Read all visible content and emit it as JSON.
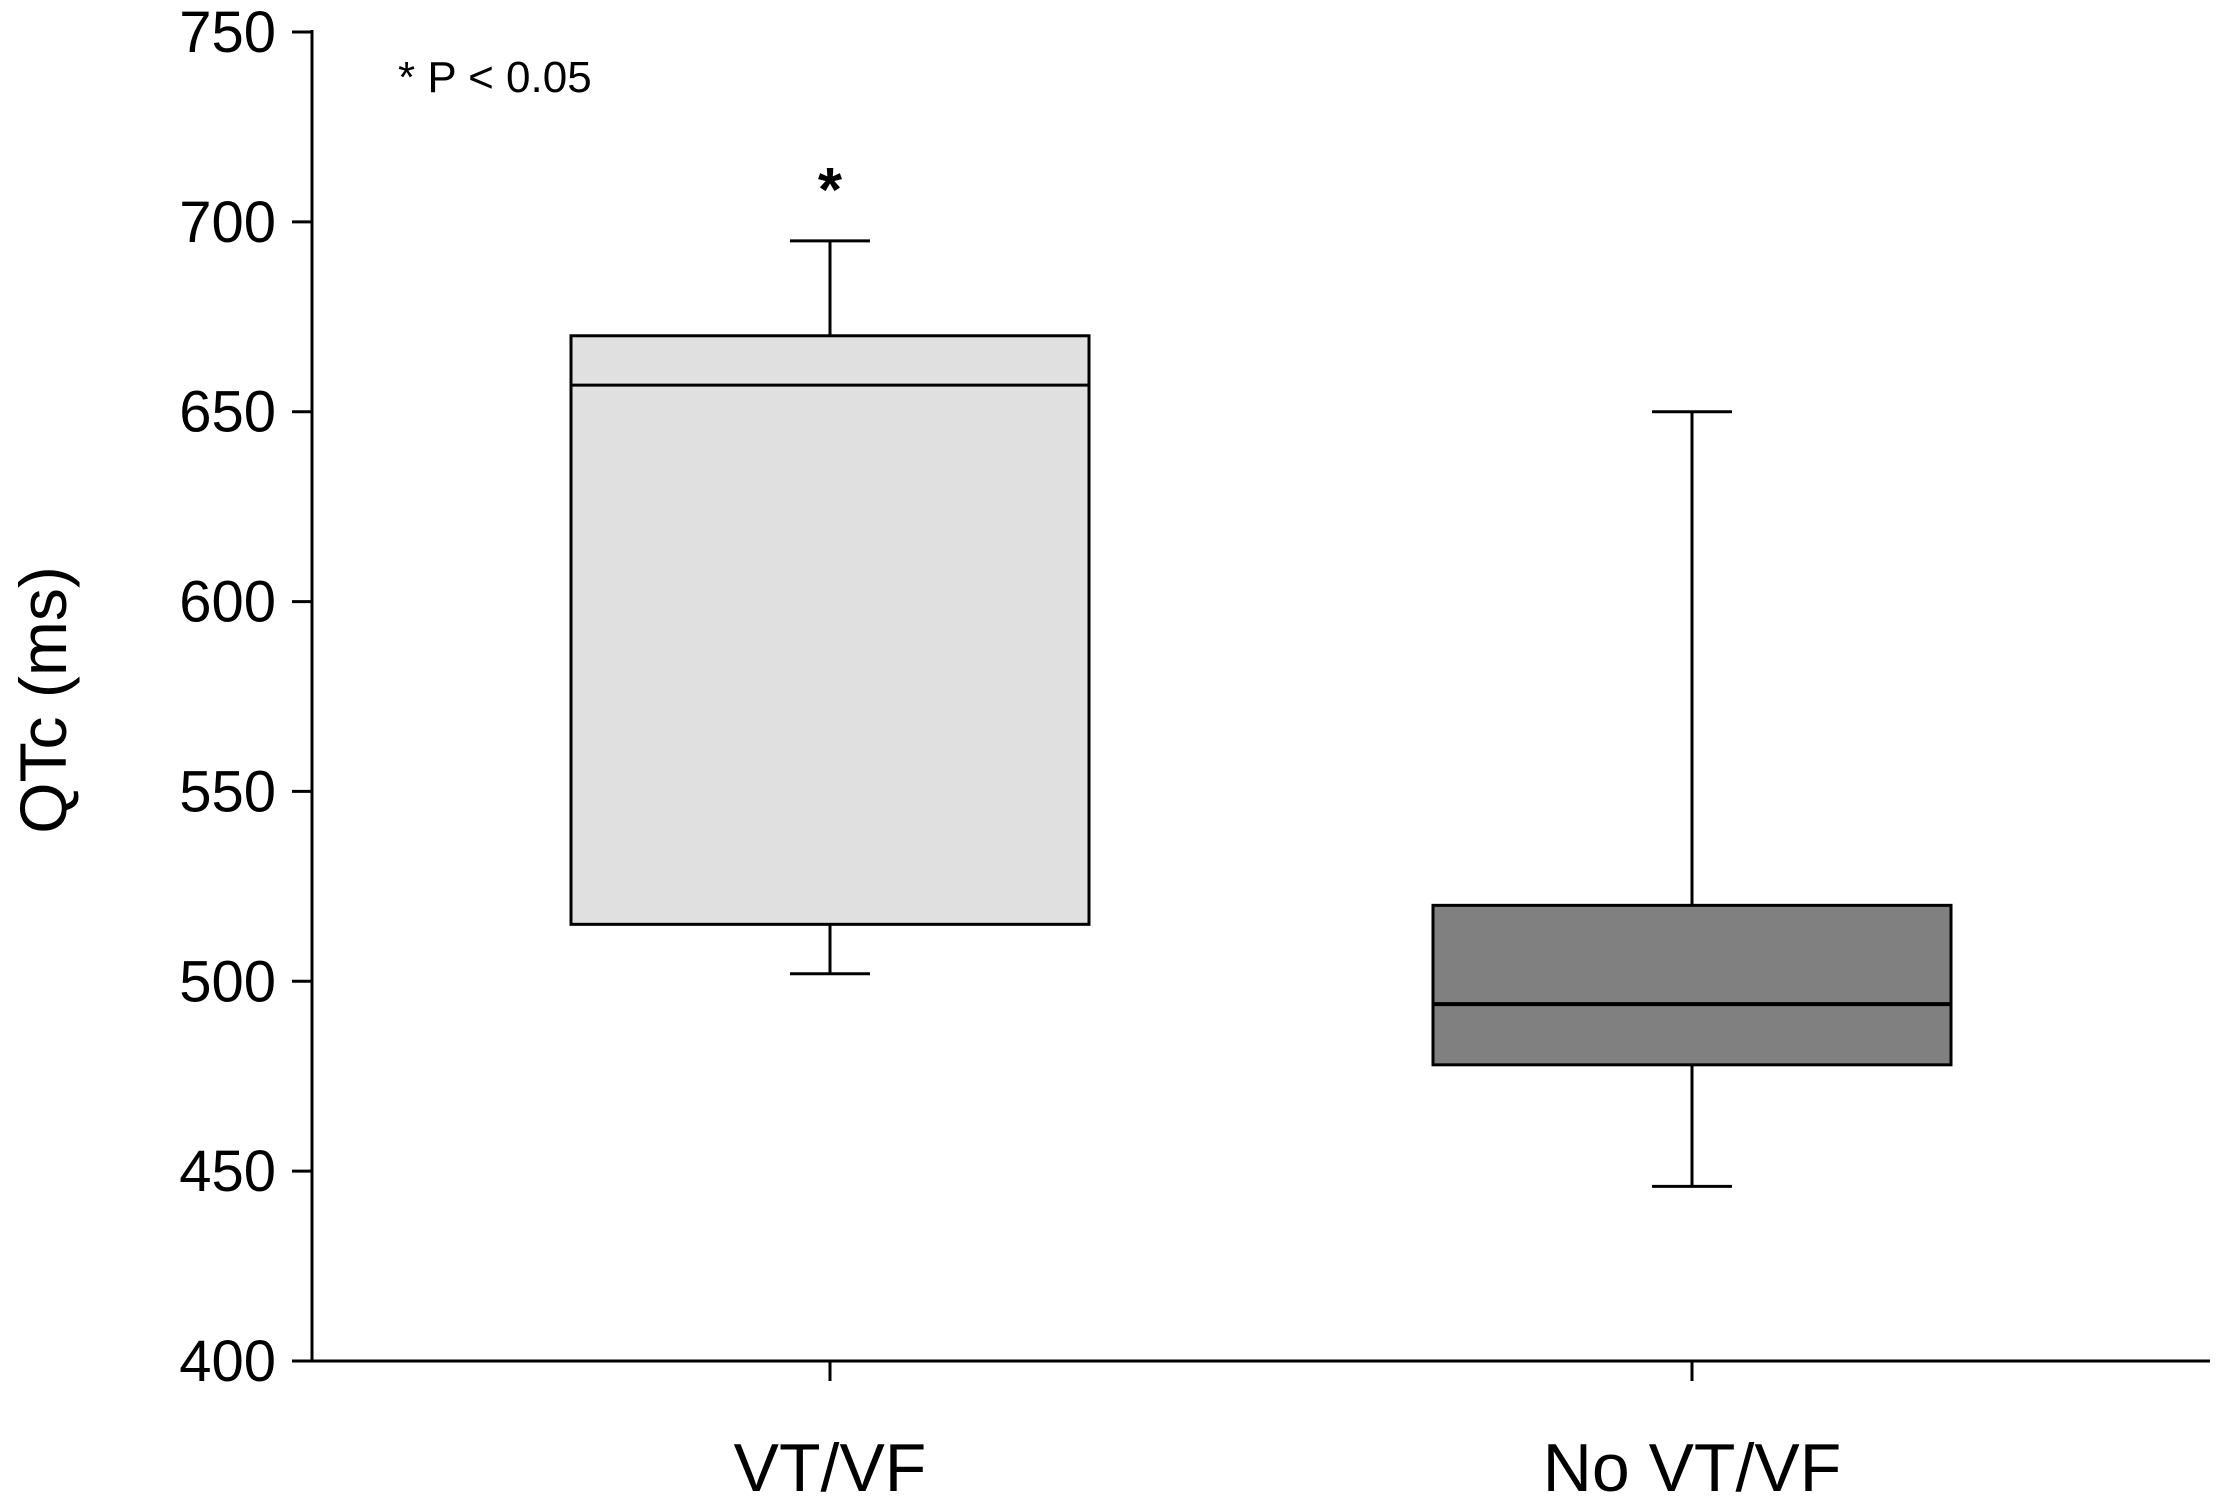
{
  "chart_data": {
    "type": "box",
    "title": "",
    "xlabel": "",
    "ylabel": "QTc (ms)",
    "ylim": [
      400,
      750
    ],
    "yticks": [
      400,
      450,
      500,
      550,
      600,
      650,
      700,
      750
    ],
    "grid": false,
    "legend": "none",
    "annotation": "* P < 0.05",
    "categories": [
      "VT/VF",
      "No VT/VF"
    ],
    "boxes": [
      {
        "label": "VT/VF",
        "whisker_low": 502,
        "q1": 515,
        "median": 657,
        "q3": 670,
        "whisker_high": 695,
        "fill": "#e0e0e0",
        "significance": "*"
      },
      {
        "label": "No VT/VF",
        "whisker_low": 446,
        "q1": 478,
        "median": 494,
        "q3": 520,
        "whisker_high": 650,
        "fill": "#808080",
        "significance": ""
      }
    ]
  }
}
